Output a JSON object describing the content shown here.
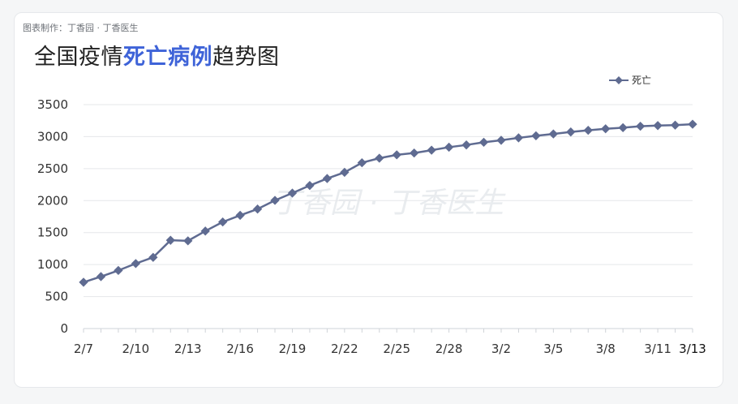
{
  "credit": "图表制作：丁香园 · 丁香医生",
  "title": {
    "prefix": "全国疫情",
    "highlight": "死亡病例",
    "suffix": "趋势图"
  },
  "watermark": "丁香园 · 丁香医生",
  "colors": {
    "line": "#5f6b91",
    "marker": "#5f6b91",
    "highlight": "#3e63d8",
    "grid": "#e5e7ea",
    "watermark": "#e9ecef"
  },
  "chart_data": {
    "type": "line",
    "legend_position": "top-right",
    "grid": true,
    "ylim": [
      0,
      3500
    ],
    "yticks": [
      0,
      500,
      1000,
      1500,
      2000,
      2500,
      3000,
      3500
    ],
    "x": [
      "2/7",
      "2/8",
      "2/9",
      "2/10",
      "2/11",
      "2/12",
      "2/13",
      "2/14",
      "2/15",
      "2/16",
      "2/17",
      "2/18",
      "2/19",
      "2/20",
      "2/21",
      "2/22",
      "2/23",
      "2/24",
      "2/25",
      "2/26",
      "2/27",
      "2/28",
      "2/29",
      "3/1",
      "3/2",
      "3/3",
      "3/4",
      "3/5",
      "3/6",
      "3/7",
      "3/8",
      "3/9",
      "3/10",
      "3/11",
      "3/12",
      "3/13"
    ],
    "xtick_labels": [
      "2/7",
      "2/10",
      "2/13",
      "2/16",
      "2/19",
      "2/22",
      "2/25",
      "2/28",
      "3/2",
      "3/5",
      "3/8",
      "3/11",
      "3/13"
    ],
    "series": [
      {
        "name": "死亡",
        "values": [
          724,
          812,
          908,
          1016,
          1113,
          1380,
          1371,
          1524,
          1666,
          1770,
          1868,
          2004,
          2118,
          2236,
          2345,
          2442,
          2592,
          2663,
          2715,
          2744,
          2788,
          2835,
          2870,
          2912,
          2943,
          2981,
          3013,
          3042,
          3073,
          3099,
          3123,
          3140,
          3162,
          3173,
          3180,
          3194
        ]
      }
    ]
  }
}
